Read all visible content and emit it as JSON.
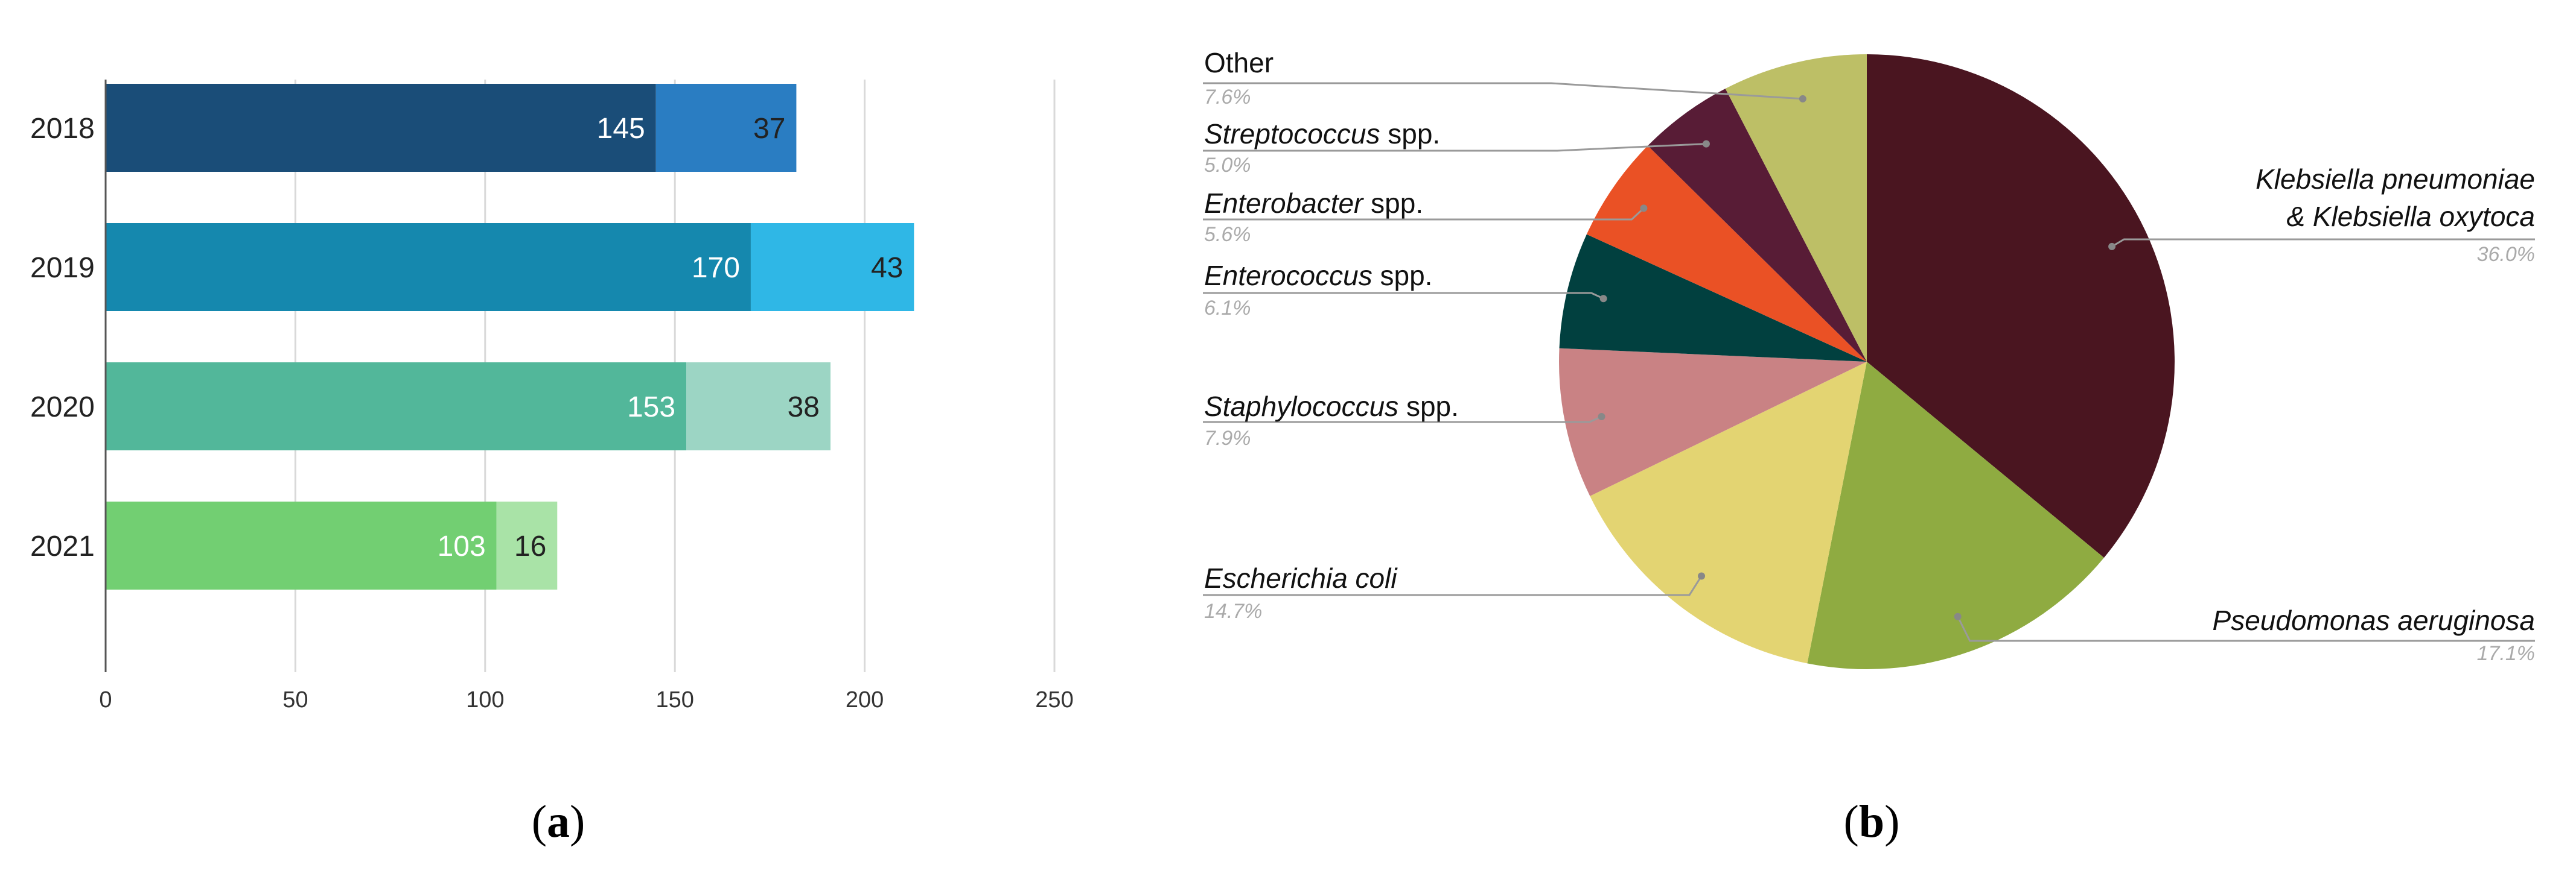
{
  "chart_data": [
    {
      "type": "bar",
      "orientation": "horizontal",
      "stacked": true,
      "categories": [
        "2018",
        "2019",
        "2020",
        "2021"
      ],
      "series": [
        {
          "values": [
            145,
            170,
            153,
            103
          ]
        },
        {
          "values": [
            37,
            43,
            38,
            16
          ]
        }
      ],
      "colors": {
        "2018": [
          "#1a4d78",
          "#2a7dc2"
        ],
        "2019": [
          "#1588ae",
          "#2fb7e6"
        ],
        "2020": [
          "#52b79a",
          "#9cd5c4"
        ],
        "2021": [
          "#72cf72",
          "#a9e3a7"
        ]
      },
      "label_colors": [
        "#ffffff",
        "#222222"
      ],
      "xlim": [
        0,
        250
      ],
      "xticks": [
        0,
        50,
        100,
        150,
        200,
        250
      ],
      "grid": true
    },
    {
      "type": "pie",
      "slices": [
        {
          "name": "Klebsiella pneumoniae",
          "name2": "& Klebsiella oxytoca",
          "pct_label": "36.0%",
          "value": 36.0,
          "color": "#4a1520"
        },
        {
          "name": "Pseudomonas aeruginosa",
          "pct_label": "17.1%",
          "value": 17.1,
          "color": "#8fab41"
        },
        {
          "name": "Escherichia coli",
          "pct_label": "14.7%",
          "value": 14.7,
          "color": "#e3d472"
        },
        {
          "name": "Staphylococcus",
          "suffix": " spp.",
          "pct_label": "7.9%",
          "value": 7.9,
          "color": "#c98284"
        },
        {
          "name": "Enterococcus",
          "suffix": " spp.",
          "pct_label": "6.1%",
          "value": 6.1,
          "color": "#01403f"
        },
        {
          "name": "Enterobacter",
          "suffix": " spp.",
          "pct_label": "5.6%",
          "value": 5.6,
          "color": "#ea5125"
        },
        {
          "name": "Streptococcus",
          "suffix": " spp.",
          "pct_label": "5.0%",
          "value": 5.0,
          "color": "#581c36"
        },
        {
          "name": "Other",
          "pct_label": "7.6%",
          "value": 7.6,
          "color": "#bdbf66",
          "upright": true
        }
      ]
    }
  ],
  "panel_labels": {
    "a": "a",
    "b": "b"
  }
}
